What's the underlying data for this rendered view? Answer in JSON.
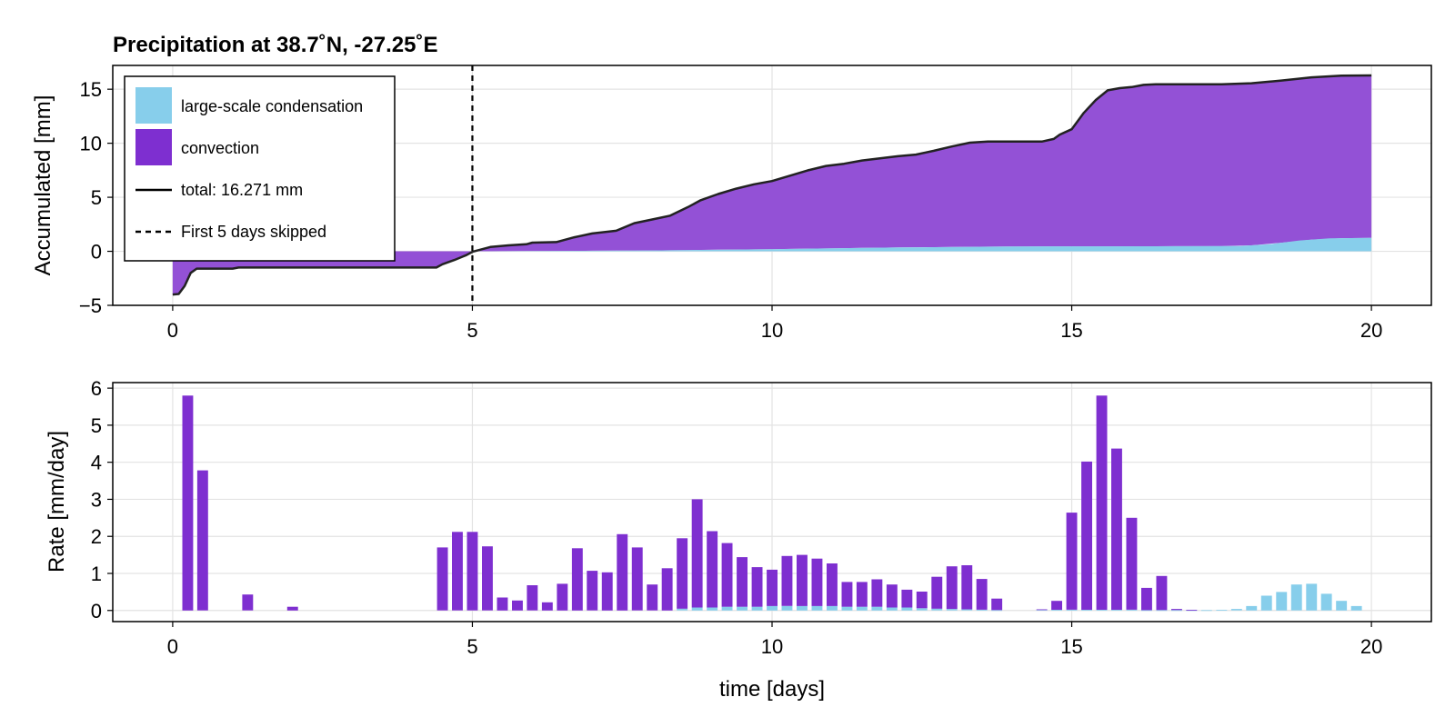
{
  "chart_data": [
    {
      "type": "area",
      "title": "Precipitation at 38.7˚N, -27.25˚E",
      "xlabel": "",
      "ylabel": "Accumulated [mm]",
      "xlim": [
        -1,
        21
      ],
      "ylim": [
        -5,
        17.2
      ],
      "xticks": [
        0,
        5,
        10,
        15,
        20
      ],
      "yticks": [
        -5,
        0,
        5,
        10,
        15
      ],
      "grid": true,
      "legend_position": "top-left",
      "colors": {
        "large_scale": "#87CEEB",
        "convection": "#8A2BE2",
        "convection_fill": "#9351D6",
        "total": "#222222"
      },
      "legend": [
        {
          "label": "large-scale condensation",
          "kind": "patch",
          "color": "#87CEEB"
        },
        {
          "label": "convection",
          "kind": "patch",
          "color": "#7E2FD0"
        },
        {
          "label": "total: 16.271 mm",
          "kind": "line"
        },
        {
          "label": "First 5 days skipped",
          "kind": "dashed"
        }
      ],
      "vline": {
        "x": 5,
        "style": "dashed"
      },
      "series": [
        {
          "name": "large-scale condensation",
          "x": [
            0,
            5,
            6,
            8,
            10,
            12,
            14,
            17.8,
            18.3,
            18.8,
            19.3,
            20
          ],
          "values": [
            0,
            0,
            0.02,
            0.08,
            0.2,
            0.35,
            0.45,
            0.48,
            0.65,
            1.0,
            1.2,
            1.25
          ]
        },
        {
          "name": "total: 16.271 mm",
          "x": [
            0,
            0.1,
            0.2,
            0.3,
            0.4,
            1,
            1.1,
            2,
            3,
            4,
            4.4,
            4.5,
            4.7,
            4.9,
            5,
            5.3,
            5.6,
            5.9,
            6.0,
            6.4,
            6.7,
            7.0,
            7.4,
            7.7,
            8.0,
            8.3,
            8.6,
            8.8,
            9.1,
            9.4,
            9.7,
            10,
            10.3,
            10.6,
            10.9,
            11.2,
            11.5,
            11.8,
            12.1,
            12.4,
            12.7,
            13.0,
            13.3,
            13.6,
            13.9,
            14.2,
            14.5,
            14.7,
            14.8,
            15.0,
            15.2,
            15.4,
            15.6,
            15.8,
            16.0,
            16.2,
            16.4,
            16.7,
            17.5,
            18.0,
            18.5,
            19.0,
            19.5,
            20
          ],
          "values": [
            -4.0,
            -3.95,
            -3.2,
            -2.0,
            -1.6,
            -1.6,
            -1.5,
            -1.5,
            -1.5,
            -1.5,
            -1.5,
            -1.2,
            -0.8,
            -0.35,
            -0.05,
            0.4,
            0.55,
            0.65,
            0.8,
            0.85,
            1.3,
            1.65,
            1.9,
            2.6,
            2.95,
            3.3,
            4.1,
            4.7,
            5.3,
            5.8,
            6.2,
            6.5,
            7.0,
            7.5,
            7.9,
            8.1,
            8.4,
            8.6,
            8.8,
            8.95,
            9.3,
            9.7,
            10.05,
            10.15,
            10.15,
            10.15,
            10.15,
            10.4,
            10.8,
            11.3,
            12.8,
            14.0,
            14.9,
            15.1,
            15.2,
            15.4,
            15.45,
            15.45,
            15.45,
            15.55,
            15.8,
            16.1,
            16.25,
            16.271
          ]
        }
      ]
    },
    {
      "type": "bar",
      "title": "",
      "xlabel": "time [days]",
      "ylabel": "Rate [mm/day]",
      "xlim": [
        -1,
        21
      ],
      "ylim": [
        -0.3,
        6.15
      ],
      "xticks": [
        0,
        5,
        10,
        15,
        20
      ],
      "yticks": [
        0,
        1,
        2,
        3,
        4,
        5,
        6
      ],
      "grid": true,
      "bar_width_days": 0.2,
      "colors": {
        "large_scale": "#87CEEB",
        "convection": "#7E2FD0"
      },
      "x": [
        0.25,
        0.5,
        1.25,
        2.0,
        4.5,
        4.75,
        5.0,
        5.25,
        5.5,
        5.75,
        6.0,
        6.25,
        6.5,
        6.75,
        7.0,
        7.25,
        7.5,
        7.75,
        8.0,
        8.25,
        8.5,
        8.75,
        9.0,
        9.25,
        9.5,
        9.75,
        10.0,
        10.25,
        10.5,
        10.75,
        11.0,
        11.25,
        11.5,
        11.75,
        12.0,
        12.25,
        12.5,
        12.75,
        13.0,
        13.25,
        13.5,
        13.75,
        14.5,
        14.75,
        15.0,
        15.25,
        15.5,
        15.75,
        16.0,
        16.25,
        16.5,
        16.75,
        17.0,
        17.25,
        17.5,
        17.75,
        18.0,
        18.25,
        18.5,
        18.75,
        19.0,
        19.25,
        19.5,
        19.75
      ],
      "series": [
        {
          "name": "large-scale condensation",
          "values": [
            0,
            0,
            0,
            0,
            0,
            0,
            0,
            0,
            0,
            0,
            0,
            0,
            0,
            0,
            0,
            0,
            0,
            0,
            0,
            0,
            0.05,
            0.08,
            0.08,
            0.1,
            0.1,
            0.1,
            0.12,
            0.12,
            0.12,
            0.12,
            0.12,
            0.1,
            0.1,
            0.1,
            0.08,
            0.08,
            0.06,
            0.05,
            0.04,
            0.03,
            0.02,
            0.01,
            0.02,
            0.02,
            0.02,
            0.02,
            0.02,
            0.02,
            0.02,
            0.01,
            0.01,
            0.01,
            0.01,
            0.01,
            0.02,
            0.04,
            0.12,
            0.4,
            0.5,
            0.7,
            0.72,
            0.45,
            0.26,
            0.12
          ]
        },
        {
          "name": "convection",
          "values": [
            5.8,
            3.78,
            0.43,
            0.1,
            1.7,
            2.12,
            2.12,
            1.73,
            0.35,
            0.27,
            0.68,
            0.22,
            0.72,
            1.68,
            1.07,
            1.03,
            2.06,
            1.7,
            0.7,
            1.14,
            1.9,
            2.92,
            2.06,
            1.72,
            1.34,
            1.07,
            0.98,
            1.35,
            1.38,
            1.28,
            1.15,
            0.67,
            0.67,
            0.74,
            0.62,
            0.48,
            0.45,
            0.86,
            1.15,
            1.19,
            0.83,
            0.31,
            0.01,
            0.24,
            2.62,
            4.0,
            5.78,
            4.35,
            2.48,
            0.6,
            0.92,
            0.03,
            0.01,
            0,
            0,
            0,
            0,
            0,
            0,
            0,
            0,
            0,
            0,
            0
          ]
        }
      ]
    }
  ]
}
